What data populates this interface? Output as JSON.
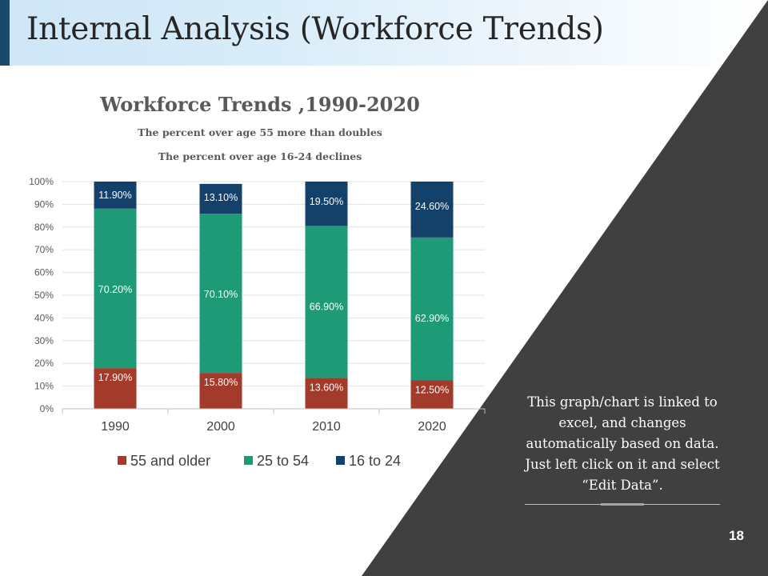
{
  "slide": {
    "title": "Internal Analysis (Workforce Trends)",
    "note": "This graph/chart is linked to excel, and changes automatically based on data. Just left click on it and select “Edit Data”.",
    "page_number": "18",
    "colors": {
      "dark_panel": "#404040",
      "header_accent": "#1a4a6b"
    }
  },
  "chart_data": {
    "type": "bar",
    "stacked": true,
    "percent_stacked": true,
    "title": "Workforce Trends ,1990-2020",
    "subtitle_1": "The percent over age 55 more than doubles",
    "subtitle_2": "The percent over age 16-24 declines",
    "categories": [
      "1990",
      "2000",
      "2010",
      "2020"
    ],
    "y_ticks": [
      "0%",
      "10%",
      "20%",
      "30%",
      "40%",
      "50%",
      "60%",
      "70%",
      "80%",
      "90%",
      "100%"
    ],
    "ylim": [
      0,
      100
    ],
    "grid": true,
    "legend_position": "bottom",
    "series": [
      {
        "name": "55 and older",
        "color": "#a33a2a",
        "values": [
          17.9,
          15.8,
          13.6,
          12.5
        ],
        "labels": [
          "17.90%",
          "15.80%",
          "13.60%",
          "12.50%"
        ]
      },
      {
        "name": "25 to 54",
        "color": "#1e9a76",
        "values": [
          70.2,
          70.1,
          66.9,
          62.9
        ],
        "labels": [
          "70.20%",
          "70.10%",
          "66.90%",
          "62.90%"
        ]
      },
      {
        "name": "16 to 24",
        "color": "#14416a",
        "values": [
          11.9,
          13.1,
          19.5,
          24.6
        ],
        "labels": [
          "11.90%",
          "13.10%",
          "19.50%",
          "24.60%"
        ]
      }
    ]
  }
}
